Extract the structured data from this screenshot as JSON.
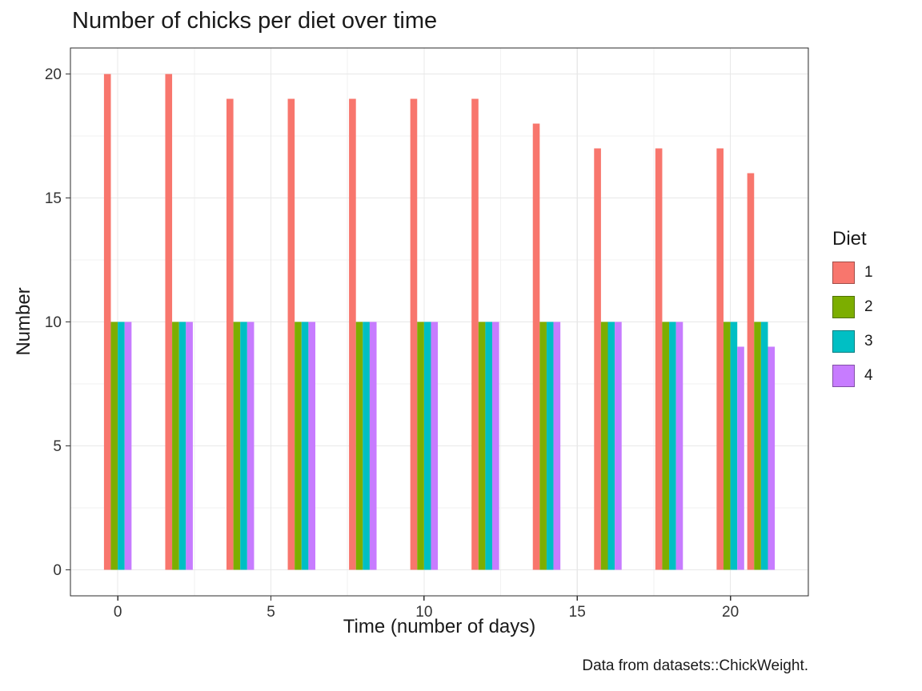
{
  "chart_data": {
    "type": "bar",
    "title": "Number of chicks per diet over time",
    "caption": "Data from datasets::ChickWeight.",
    "xlabel": "Time (number of days)",
    "ylabel": "Number",
    "legend_title": "Diet",
    "legend_position": "right",
    "grid": true,
    "x": [
      0,
      2,
      4,
      6,
      8,
      10,
      12,
      14,
      16,
      18,
      20,
      21
    ],
    "series": [
      {
        "name": "1",
        "color": "#F8766D",
        "values": [
          20,
          20,
          19,
          19,
          19,
          19,
          19,
          18,
          17,
          17,
          17,
          16
        ]
      },
      {
        "name": "2",
        "color": "#7CAE00",
        "values": [
          10,
          10,
          10,
          10,
          10,
          10,
          10,
          10,
          10,
          10,
          10,
          10
        ]
      },
      {
        "name": "3",
        "color": "#00BFC4",
        "values": [
          10,
          10,
          10,
          10,
          10,
          10,
          10,
          10,
          10,
          10,
          10,
          10
        ]
      },
      {
        "name": "4",
        "color": "#C77CFF",
        "values": [
          10,
          10,
          10,
          10,
          10,
          10,
          10,
          10,
          10,
          10,
          9,
          9
        ]
      }
    ],
    "x_ticks": [
      0,
      5,
      10,
      15,
      20
    ],
    "y_ticks": [
      0,
      5,
      10,
      15,
      20
    ],
    "xlim": [
      -1.5,
      22.5
    ],
    "ylim": [
      0,
      20
    ],
    "group_width": 0.9,
    "bar_width": 0.225
  }
}
